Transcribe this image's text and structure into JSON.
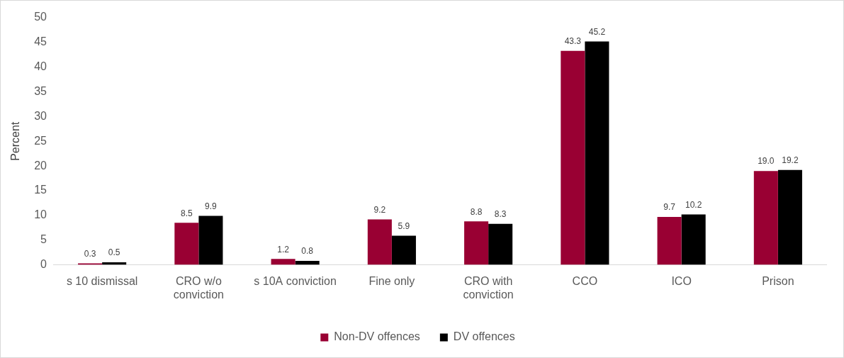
{
  "chart_data": {
    "type": "bar",
    "y_label": "Percent",
    "categories": [
      "s 10 dismissal",
      "CRO w/o conviction",
      "s 10A conviction",
      "Fine only",
      "CRO with conviction",
      "CCO",
      "ICO",
      "Prison"
    ],
    "series": [
      {
        "name": "Non-DV offences",
        "color": "#990033",
        "values": [
          0.3,
          8.5,
          1.2,
          9.2,
          8.8,
          43.3,
          9.7,
          19.0
        ],
        "value_labels": [
          "0.3",
          "8.5",
          "1.2",
          "9.2",
          "8.8",
          "43.3",
          "9.7",
          "19.0"
        ]
      },
      {
        "name": "DV offences",
        "color": "#000000",
        "values": [
          0.5,
          9.9,
          0.8,
          5.9,
          8.3,
          45.2,
          10.2,
          19.2
        ],
        "value_labels": [
          "0.5",
          "9.9",
          "0.8",
          "5.9",
          "8.3",
          "45.2",
          "10.2",
          "19.2"
        ]
      }
    ],
    "ylim": [
      0,
      50
    ],
    "yticks": [
      0,
      5,
      10,
      15,
      20,
      25,
      30,
      35,
      40,
      45,
      50
    ],
    "grid": false,
    "legend": "bottom",
    "data_labels": true
  }
}
